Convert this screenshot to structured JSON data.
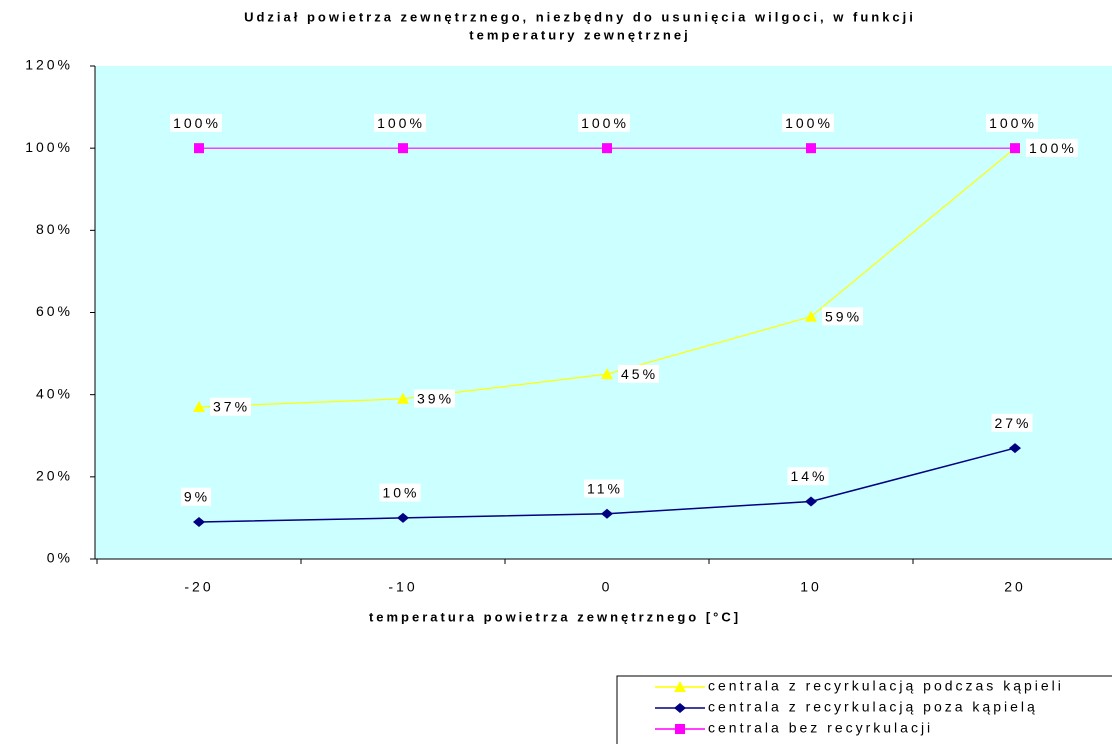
{
  "chart_data": {
    "type": "line",
    "title": [
      "Udział powietrza zewnętrznego, niezbędny do usunięcia wilgoci, w funkcji",
      "temperatury zewnętrznej"
    ],
    "x_label": "temperatura powietrza zewnętrznego [°C]",
    "categories": [
      "-20",
      "-10",
      "0",
      "10",
      "20"
    ],
    "ylim": [
      0,
      120
    ],
    "yticks": [
      {
        "value": 0,
        "label": "0%"
      },
      {
        "value": 20,
        "label": "20%"
      },
      {
        "value": 40,
        "label": "40%"
      },
      {
        "value": 60,
        "label": "60%"
      },
      {
        "value": 80,
        "label": "80%"
      },
      {
        "value": 100,
        "label": "100%"
      },
      {
        "value": 120,
        "label": "120%"
      }
    ],
    "plot_background": "#ccffff",
    "legend": "bottom-right",
    "series": [
      {
        "name": "centrala z recyrkulacją podczas kąpieli",
        "color": "#ffff00",
        "marker": "triangle",
        "values": [
          37,
          39,
          45,
          59,
          100
        ],
        "value_labels": [
          "37%",
          "39%",
          "45%",
          "59%",
          "100%"
        ]
      },
      {
        "name": "centrala z recyrkulacją poza kąpielą",
        "color": "#000080",
        "marker": "diamond",
        "values": [
          9,
          10,
          11,
          14,
          27
        ],
        "value_labels": [
          "9%",
          "10%",
          "11%",
          "14%",
          "27%"
        ]
      },
      {
        "name": "centrala bez recyrkulacji",
        "color": "#ff00ff",
        "marker": "square",
        "values": [
          100,
          100,
          100,
          100,
          100
        ],
        "value_labels": [
          "100%",
          "100%",
          "100%",
          "100%",
          "100%"
        ]
      }
    ]
  }
}
